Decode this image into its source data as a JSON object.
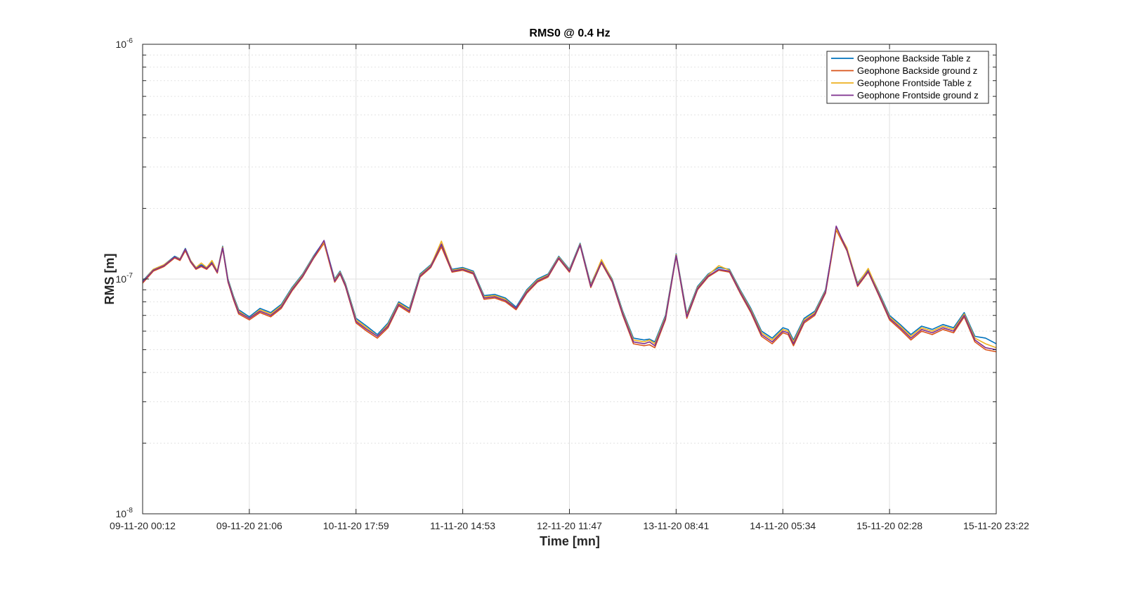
{
  "chart_data": {
    "type": "line",
    "title": "RMS0 @ 0.4 Hz",
    "xlabel": "Time [mn]",
    "ylabel": "RMS [m]",
    "yscale": "log",
    "ylim": [
      1e-08,
      1e-06
    ],
    "y_tick_labels": [
      {
        "value": 1e-08,
        "base": "10",
        "exp": "-8"
      },
      {
        "value": 1e-07,
        "base": "10",
        "exp": "-7"
      },
      {
        "value": 1e-06,
        "base": "10",
        "exp": "-6"
      }
    ],
    "x_tick_labels": [
      "09-11-20 00:12",
      "09-11-20 21:06",
      "10-11-20 17:59",
      "11-11-20 14:53",
      "12-11-20 11:47",
      "13-11-20 08:41",
      "14-11-20 05:34",
      "15-11-20 02:28",
      "15-11-20 23:22"
    ],
    "grid": true,
    "legend_position": "top-right",
    "series": [
      {
        "name": "Geophone Backside Table z",
        "color": "#0072BD",
        "x": [
          0,
          0.1,
          0.2,
          0.3,
          0.35,
          0.4,
          0.45,
          0.5,
          0.55,
          0.6,
          0.65,
          0.7,
          0.75,
          0.8,
          0.85,
          0.9,
          1.0,
          1.1,
          1.2,
          1.3,
          1.4,
          1.5,
          1.6,
          1.7,
          1.8,
          1.85,
          1.9,
          2.0,
          2.1,
          2.2,
          2.3,
          2.4,
          2.5,
          2.6,
          2.7,
          2.8,
          2.9,
          3.0,
          3.1,
          3.2,
          3.3,
          3.4,
          3.5,
          3.6,
          3.7,
          3.8,
          3.9,
          4.0,
          4.1,
          4.2,
          4.3,
          4.4,
          4.5,
          4.6,
          4.7,
          4.75,
          4.8,
          4.9,
          5.0,
          5.1,
          5.2,
          5.3,
          5.4,
          5.5,
          5.6,
          5.7,
          5.8,
          5.9,
          6.0,
          6.05,
          6.1,
          6.2,
          6.3,
          6.4,
          6.5,
          6.6,
          6.7,
          6.8,
          6.9,
          7.0,
          7.1,
          7.2,
          7.3,
          7.4,
          7.5,
          7.6,
          7.7,
          7.8,
          7.9,
          8.0
        ],
        "values": [
          9.8e-08,
          1.1e-07,
          1.15e-07,
          1.25e-07,
          1.22e-07,
          1.35e-07,
          1.2e-07,
          1.12e-07,
          1.15e-07,
          1.12e-07,
          1.18e-07,
          1.08e-07,
          1.38e-07,
          1e-07,
          8.5e-08,
          7.4e-08,
          6.9e-08,
          7.5e-08,
          7.2e-08,
          7.8e-08,
          9.2e-08,
          1.05e-07,
          1.25e-07,
          1.45e-07,
          1e-07,
          1.08e-07,
          9.6e-08,
          6.8e-08,
          6.3e-08,
          5.8e-08,
          6.5e-08,
          8e-08,
          7.5e-08,
          1.05e-07,
          1.15e-07,
          1.4e-07,
          1.1e-07,
          1.12e-07,
          1.08e-07,
          8.5e-08,
          8.6e-08,
          8.3e-08,
          7.6e-08,
          9e-08,
          1e-07,
          1.05e-07,
          1.25e-07,
          1.1e-07,
          1.42e-07,
          9.5e-08,
          1.2e-07,
          1e-07,
          7.3e-08,
          5.6e-08,
          5.5e-08,
          5.55e-08,
          5.4e-08,
          7e-08,
          1.28e-07,
          7.1e-08,
          9.3e-08,
          1.05e-07,
          1.12e-07,
          1.1e-07,
          9e-08,
          7.5e-08,
          6e-08,
          5.6e-08,
          6.2e-08,
          6.1e-08,
          5.5e-08,
          6.8e-08,
          7.3e-08,
          9e-08,
          1.65e-07,
          1.35e-07,
          9.6e-08,
          1.1e-07,
          8.8e-08,
          7e-08,
          6.4e-08,
          5.8e-08,
          6.3e-08,
          6.1e-08,
          6.4e-08,
          6.2e-08,
          7.2e-08,
          5.7e-08,
          5.6e-08,
          5.3e-08
        ]
      },
      {
        "name": "Geophone Backside ground z",
        "color": "#D95319",
        "x": [
          0,
          0.1,
          0.2,
          0.3,
          0.35,
          0.4,
          0.45,
          0.5,
          0.55,
          0.6,
          0.65,
          0.7,
          0.75,
          0.8,
          0.85,
          0.9,
          1.0,
          1.1,
          1.2,
          1.3,
          1.4,
          1.5,
          1.6,
          1.7,
          1.8,
          1.85,
          1.9,
          2.0,
          2.1,
          2.2,
          2.3,
          2.4,
          2.5,
          2.6,
          2.7,
          2.8,
          2.9,
          3.0,
          3.1,
          3.2,
          3.3,
          3.4,
          3.5,
          3.6,
          3.7,
          3.8,
          3.9,
          4.0,
          4.1,
          4.2,
          4.3,
          4.4,
          4.5,
          4.6,
          4.7,
          4.75,
          4.8,
          4.9,
          5.0,
          5.1,
          5.2,
          5.3,
          5.4,
          5.5,
          5.6,
          5.7,
          5.8,
          5.9,
          6.0,
          6.05,
          6.1,
          6.2,
          6.3,
          6.4,
          6.5,
          6.6,
          6.7,
          6.8,
          6.9,
          7.0,
          7.1,
          7.2,
          7.3,
          7.4,
          7.5,
          7.6,
          7.7,
          7.8,
          7.9,
          8.0
        ],
        "values": [
          9.6e-08,
          1.08e-07,
          1.13e-07,
          1.23e-07,
          1.2e-07,
          1.32e-07,
          1.18e-07,
          1.1e-07,
          1.13e-07,
          1.1e-07,
          1.16e-07,
          1.06e-07,
          1.35e-07,
          9.7e-08,
          8.2e-08,
          7.1e-08,
          6.7e-08,
          7.2e-08,
          6.9e-08,
          7.5e-08,
          8.9e-08,
          1.02e-07,
          1.22e-07,
          1.42e-07,
          9.7e-08,
          1.05e-07,
          9.3e-08,
          6.5e-08,
          6e-08,
          5.6e-08,
          6.2e-08,
          7.7e-08,
          7.2e-08,
          1.02e-07,
          1.12e-07,
          1.37e-07,
          1.07e-07,
          1.09e-07,
          1.05e-07,
          8.2e-08,
          8.3e-08,
          8e-08,
          7.4e-08,
          8.7e-08,
          9.7e-08,
          1.02e-07,
          1.22e-07,
          1.07e-07,
          1.39e-07,
          9.2e-08,
          1.17e-07,
          9.7e-08,
          7e-08,
          5.3e-08,
          5.2e-08,
          5.25e-08,
          5.1e-08,
          6.7e-08,
          1.25e-07,
          6.8e-08,
          9e-08,
          1.02e-07,
          1.09e-07,
          1.07e-07,
          8.7e-08,
          7.2e-08,
          5.7e-08,
          5.3e-08,
          5.9e-08,
          5.8e-08,
          5.2e-08,
          6.5e-08,
          7e-08,
          8.7e-08,
          1.62e-07,
          1.32e-07,
          9.3e-08,
          1.07e-07,
          8.5e-08,
          6.7e-08,
          6.1e-08,
          5.5e-08,
          6e-08,
          5.8e-08,
          6.1e-08,
          5.9e-08,
          6.9e-08,
          5.4e-08,
          5e-08,
          4.9e-08
        ]
      },
      {
        "name": "Geophone Frontside Table z",
        "color": "#EDB120",
        "x": [
          0,
          0.1,
          0.2,
          0.3,
          0.35,
          0.4,
          0.45,
          0.5,
          0.55,
          0.6,
          0.65,
          0.7,
          0.75,
          0.8,
          0.85,
          0.9,
          1.0,
          1.1,
          1.2,
          1.3,
          1.4,
          1.5,
          1.6,
          1.7,
          1.8,
          1.85,
          1.9,
          2.0,
          2.1,
          2.2,
          2.3,
          2.4,
          2.5,
          2.6,
          2.7,
          2.8,
          2.9,
          3.0,
          3.1,
          3.2,
          3.3,
          3.4,
          3.5,
          3.6,
          3.7,
          3.8,
          3.9,
          4.0,
          4.1,
          4.2,
          4.3,
          4.4,
          4.5,
          4.6,
          4.7,
          4.75,
          4.8,
          4.9,
          5.0,
          5.1,
          5.2,
          5.3,
          5.4,
          5.5,
          5.6,
          5.7,
          5.8,
          5.9,
          6.0,
          6.05,
          6.1,
          6.2,
          6.3,
          6.4,
          6.5,
          6.6,
          6.7,
          6.8,
          6.9,
          7.0,
          7.1,
          7.2,
          7.3,
          7.4,
          7.5,
          7.6,
          7.7,
          7.8,
          7.9,
          8.0
        ],
        "values": [
          9.7e-08,
          1.1e-07,
          1.15e-07,
          1.24e-07,
          1.22e-07,
          1.34e-07,
          1.2e-07,
          1.12e-07,
          1.17e-07,
          1.12e-07,
          1.2e-07,
          1.08e-07,
          1.37e-07,
          9.9e-08,
          8.4e-08,
          7.3e-08,
          6.8e-08,
          7.4e-08,
          7.1e-08,
          7.7e-08,
          9.1e-08,
          1.04e-07,
          1.24e-07,
          1.44e-07,
          9.9e-08,
          1.07e-07,
          9.5e-08,
          6.7e-08,
          6.2e-08,
          5.7e-08,
          6.4e-08,
          7.9e-08,
          7.4e-08,
          1.04e-07,
          1.14e-07,
          1.45e-07,
          1.09e-07,
          1.11e-07,
          1.07e-07,
          8.4e-08,
          8.5e-08,
          8.2e-08,
          7.5e-08,
          8.9e-08,
          9.9e-08,
          1.04e-07,
          1.24e-07,
          1.09e-07,
          1.41e-07,
          9.4e-08,
          1.21e-07,
          9.9e-08,
          7.2e-08,
          5.5e-08,
          5.4e-08,
          5.5e-08,
          5.3e-08,
          6.9e-08,
          1.27e-07,
          7e-08,
          9.2e-08,
          1.04e-07,
          1.14e-07,
          1.09e-07,
          8.9e-08,
          7.4e-08,
          5.9e-08,
          5.5e-08,
          6.1e-08,
          6e-08,
          5.4e-08,
          6.7e-08,
          7.2e-08,
          8.9e-08,
          1.64e-07,
          1.36e-07,
          9.5e-08,
          1.11e-07,
          8.7e-08,
          6.9e-08,
          6.3e-08,
          5.7e-08,
          6.2e-08,
          6e-08,
          6.3e-08,
          6.1e-08,
          7.1e-08,
          5.6e-08,
          5.3e-08,
          5.1e-08
        ]
      },
      {
        "name": "Geophone Frontside ground z",
        "color": "#7E2F8E",
        "x": [
          0,
          0.1,
          0.2,
          0.3,
          0.35,
          0.4,
          0.45,
          0.5,
          0.55,
          0.6,
          0.65,
          0.7,
          0.75,
          0.8,
          0.85,
          0.9,
          1.0,
          1.1,
          1.2,
          1.3,
          1.4,
          1.5,
          1.6,
          1.7,
          1.8,
          1.85,
          1.9,
          2.0,
          2.1,
          2.2,
          2.3,
          2.4,
          2.5,
          2.6,
          2.7,
          2.8,
          2.9,
          3.0,
          3.1,
          3.2,
          3.3,
          3.4,
          3.5,
          3.6,
          3.7,
          3.8,
          3.9,
          4.0,
          4.1,
          4.2,
          4.3,
          4.4,
          4.5,
          4.6,
          4.7,
          4.75,
          4.8,
          4.9,
          5.0,
          5.1,
          5.2,
          5.3,
          5.4,
          5.5,
          5.6,
          5.7,
          5.8,
          5.9,
          6.0,
          6.05,
          6.1,
          6.2,
          6.3,
          6.4,
          6.5,
          6.6,
          6.7,
          6.8,
          6.9,
          7.0,
          7.1,
          7.2,
          7.3,
          7.4,
          7.5,
          7.6,
          7.7,
          7.8,
          7.9,
          8.0
        ],
        "values": [
          9.7e-08,
          1.09e-07,
          1.14e-07,
          1.24e-07,
          1.21e-07,
          1.34e-07,
          1.19e-07,
          1.11e-07,
          1.14e-07,
          1.11e-07,
          1.17e-07,
          1.07e-07,
          1.36e-07,
          9.8e-08,
          8.3e-08,
          7.2e-08,
          6.8e-08,
          7.3e-08,
          7e-08,
          7.6e-08,
          9e-08,
          1.03e-07,
          1.23e-07,
          1.46e-07,
          9.8e-08,
          1.06e-07,
          9.4e-08,
          6.6e-08,
          6.1e-08,
          5.7e-08,
          6.3e-08,
          7.8e-08,
          7.3e-08,
          1.03e-07,
          1.13e-07,
          1.41e-07,
          1.08e-07,
          1.1e-07,
          1.06e-07,
          8.3e-08,
          8.4e-08,
          8.1e-08,
          7.5e-08,
          8.8e-08,
          9.8e-08,
          1.03e-07,
          1.23e-07,
          1.08e-07,
          1.4e-07,
          9.3e-08,
          1.18e-07,
          9.8e-08,
          7.1e-08,
          5.4e-08,
          5.3e-08,
          5.4e-08,
          5.2e-08,
          6.8e-08,
          1.26e-07,
          6.9e-08,
          9.1e-08,
          1.03e-07,
          1.1e-07,
          1.08e-07,
          8.8e-08,
          7.3e-08,
          5.8e-08,
          5.4e-08,
          6e-08,
          5.9e-08,
          5.3e-08,
          6.6e-08,
          7.1e-08,
          8.8e-08,
          1.68e-07,
          1.33e-07,
          9.4e-08,
          1.08e-07,
          8.6e-08,
          6.8e-08,
          6.2e-08,
          5.6e-08,
          6.1e-08,
          5.9e-08,
          6.2e-08,
          6e-08,
          7e-08,
          5.5e-08,
          5.1e-08,
          5e-08
        ]
      }
    ]
  }
}
